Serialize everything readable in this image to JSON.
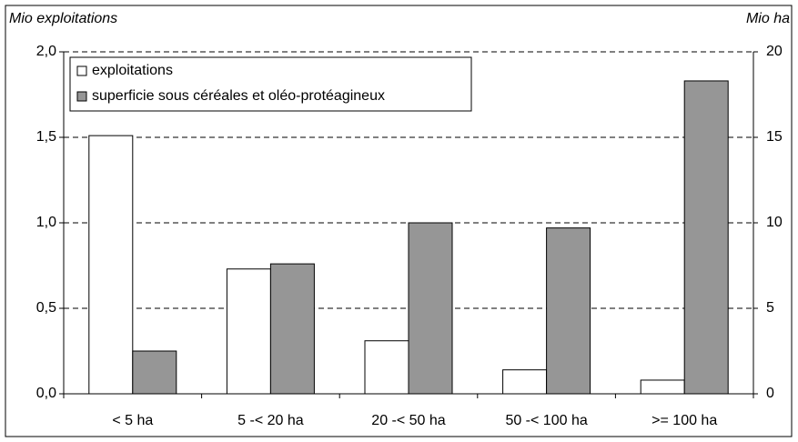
{
  "chart_data": {
    "type": "bar",
    "y_label": "Mio exploitations",
    "y2_label": "Mio ha",
    "categories": [
      "< 5 ha",
      "5 -< 20 ha",
      "20 -< 50 ha",
      "50 -< 100 ha",
      ">= 100 ha"
    ],
    "series": [
      {
        "name": "exploitations",
        "color": "#ffffff",
        "values": [
          1.51,
          0.73,
          0.31,
          0.14,
          0.08
        ]
      },
      {
        "name": "superficie sous céréales et oléo-protéagineux",
        "color": "#969696",
        "axis": "y2",
        "values": [
          2.5,
          7.6,
          10.0,
          9.7,
          18.3
        ]
      }
    ],
    "ylim": [
      0,
      2
    ],
    "yticks": [
      {
        "value": 0,
        "label": "0,0"
      },
      {
        "value": 0.5,
        "label": "0,5"
      },
      {
        "value": 1,
        "label": "1,0"
      },
      {
        "value": 1.5,
        "label": "1,5"
      },
      {
        "value": 2,
        "label": "2,0"
      }
    ],
    "y2lim": [
      0,
      20
    ],
    "y2ticks": [
      0,
      5,
      10,
      15,
      20
    ],
    "grid": true,
    "legend": "top-left"
  }
}
